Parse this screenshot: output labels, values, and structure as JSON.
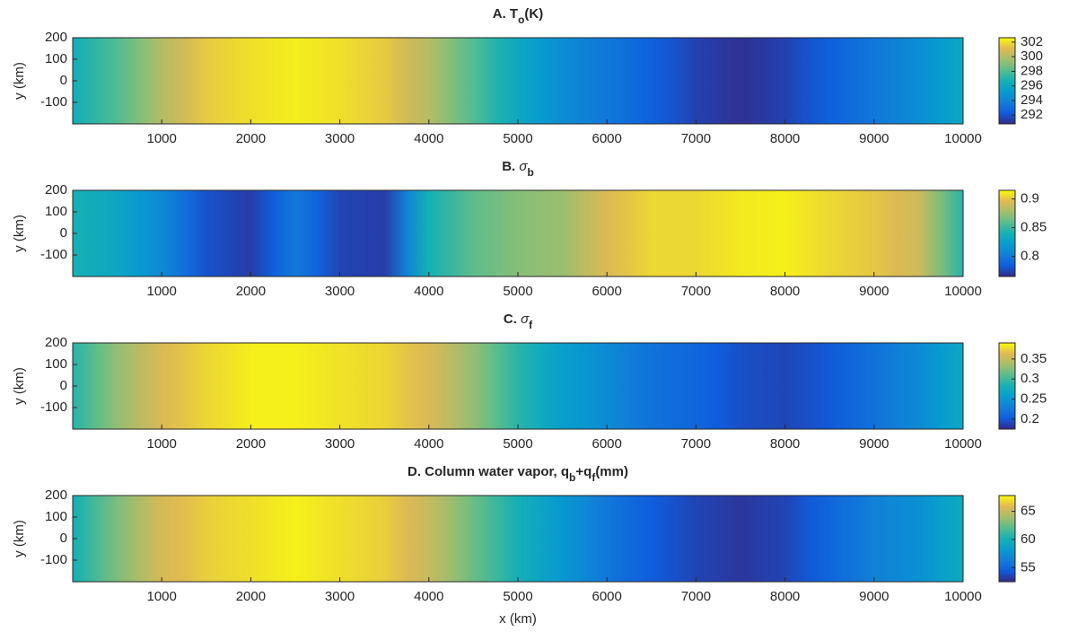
{
  "chart_data": [
    {
      "type": "heatmap",
      "colormap": "parula",
      "title_parts": [
        {
          "text": "A. T"
        },
        {
          "text": "o",
          "sub": true
        },
        {
          "text": "(K)"
        }
      ],
      "ylabel": "y (km)",
      "x": [
        0,
        500,
        1000,
        1500,
        2000,
        2500,
        3000,
        3500,
        4000,
        4500,
        5000,
        5500,
        6000,
        6500,
        7000,
        7500,
        8000,
        8500,
        9000,
        9500,
        10000
      ],
      "values": [
        296.5,
        298,
        300,
        301.5,
        302,
        302.3,
        302,
        301.5,
        300,
        298,
        296,
        294.5,
        293.5,
        292.5,
        291.5,
        291,
        291.5,
        292.5,
        293.5,
        294.5,
        296
      ],
      "xlim": [
        0,
        10000
      ],
      "ylim": [
        -200,
        200
      ],
      "xticks": [
        1000,
        2000,
        3000,
        4000,
        5000,
        6000,
        7000,
        8000,
        9000,
        10000
      ],
      "yticks": [
        -100,
        0,
        100,
        200
      ],
      "clim": [
        290.8,
        302.6
      ],
      "cticks": [
        292,
        294,
        296,
        298,
        300,
        302
      ]
    },
    {
      "type": "heatmap",
      "colormap": "parula",
      "title_parts": [
        {
          "text": "B. "
        },
        {
          "text": "σ",
          "italic": true
        },
        {
          "text": "b",
          "sub": true
        }
      ],
      "ylabel": "y (km)",
      "x": [
        0,
        500,
        1000,
        1500,
        2000,
        2500,
        3000,
        3500,
        4000,
        4500,
        5000,
        5500,
        6000,
        6500,
        7000,
        7500,
        8000,
        8500,
        9000,
        9500,
        10000
      ],
      "values": [
        0.84,
        0.83,
        0.81,
        0.78,
        0.772,
        0.8,
        0.775,
        0.772,
        0.84,
        0.86,
        0.87,
        0.875,
        0.895,
        0.905,
        0.905,
        0.91,
        0.912,
        0.905,
        0.9,
        0.89,
        0.845
      ],
      "xlim": [
        0,
        10000
      ],
      "ylim": [
        -200,
        200
      ],
      "xticks": [
        1000,
        2000,
        3000,
        4000,
        5000,
        6000,
        7000,
        8000,
        9000,
        10000
      ],
      "yticks": [
        -100,
        0,
        100,
        200
      ],
      "clim": [
        0.765,
        0.915
      ],
      "cticks": [
        0.8,
        0.85,
        0.9
      ]
    },
    {
      "type": "heatmap",
      "colormap": "parula",
      "title_parts": [
        {
          "text": "C. "
        },
        {
          "text": "σ",
          "italic": true
        },
        {
          "text": "f",
          "sub": true
        }
      ],
      "ylabel": "y (km)",
      "x": [
        0,
        500,
        1000,
        1500,
        2000,
        2500,
        3000,
        3500,
        4000,
        4500,
        5000,
        5500,
        6000,
        6500,
        7000,
        7500,
        8000,
        8500,
        9000,
        9500,
        10000
      ],
      "values": [
        0.29,
        0.33,
        0.36,
        0.375,
        0.385,
        0.385,
        0.38,
        0.375,
        0.36,
        0.33,
        0.29,
        0.26,
        0.24,
        0.22,
        0.21,
        0.195,
        0.19,
        0.2,
        0.22,
        0.24,
        0.27
      ],
      "xlim": [
        0,
        10000
      ],
      "ylim": [
        -200,
        200
      ],
      "xticks": [
        1000,
        2000,
        3000,
        4000,
        5000,
        6000,
        7000,
        8000,
        9000,
        10000
      ],
      "yticks": [
        -100,
        0,
        100,
        200
      ],
      "clim": [
        0.175,
        0.39
      ],
      "cticks": [
        0.2,
        0.25,
        0.3,
        0.35
      ]
    },
    {
      "type": "heatmap",
      "colormap": "parula",
      "title_parts": [
        {
          "text": "D. Column water vapor, q"
        },
        {
          "text": "b",
          "sub": true
        },
        {
          "text": "+q"
        },
        {
          "text": "f",
          "sub": true
        },
        {
          "text": "(mm)"
        }
      ],
      "ylabel": "y (km)",
      "xlabel": "x (km)",
      "x": [
        0,
        500,
        1000,
        1500,
        2000,
        2500,
        3000,
        3500,
        4000,
        4500,
        5000,
        5500,
        6000,
        6500,
        7000,
        7500,
        8000,
        8500,
        9000,
        9500,
        10000
      ],
      "values": [
        60,
        63,
        65.5,
        66.5,
        67,
        67.5,
        67,
        66.5,
        65,
        62.5,
        60,
        58,
        56,
        54.5,
        53.5,
        53,
        53.5,
        55,
        56.5,
        57.5,
        59.5
      ],
      "xlim": [
        0,
        10000
      ],
      "ylim": [
        -200,
        200
      ],
      "xticks": [
        1000,
        2000,
        3000,
        4000,
        5000,
        6000,
        7000,
        8000,
        9000,
        10000
      ],
      "yticks": [
        -100,
        0,
        100,
        200
      ],
      "clim": [
        52.5,
        67.8
      ],
      "cticks": [
        55,
        60,
        65
      ]
    }
  ]
}
